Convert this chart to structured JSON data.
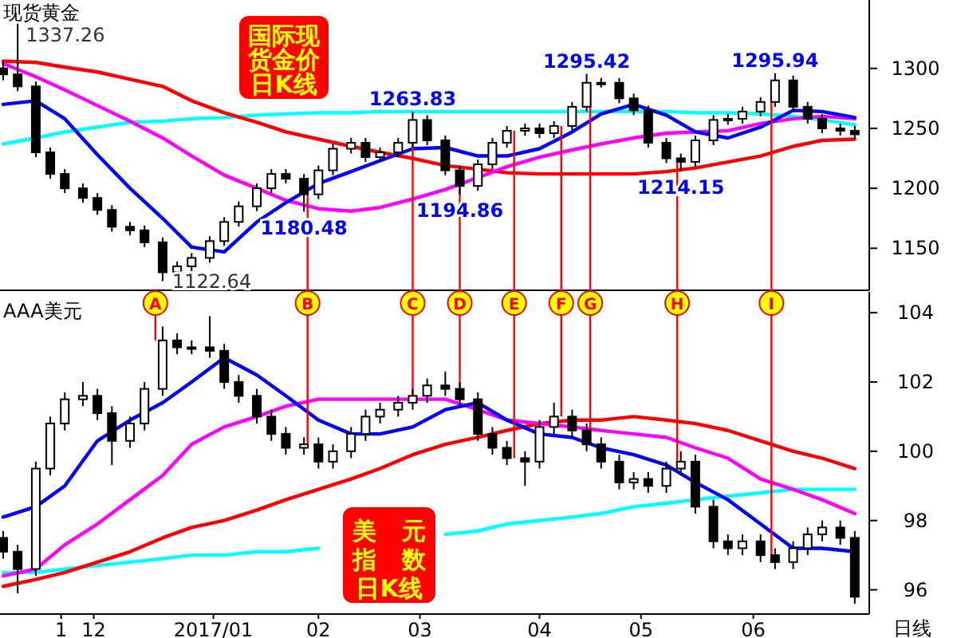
{
  "chart_data": [
    {
      "type": "candlestick",
      "title": "国际现货金价日K线",
      "subtitle": "现货黄金",
      "tick_labels": "y",
      "xlim": [
        "2016-11-06",
        "2017-07-03"
      ],
      "ylim": [
        1115,
        1357
      ],
      "yticks": [
        1150,
        1200,
        1250,
        1300
      ],
      "x": [
        "2016-11-06",
        "2016-11-10",
        "2016-11-15",
        "2016-11-19",
        "2016-11-23",
        "2016-11-28",
        "2016-12-02",
        "2016-12-06",
        "2016-12-11",
        "2016-12-15",
        "2016-12-20",
        "2016-12-24",
        "2016-12-28",
        "2017-01-02",
        "2017-01-06",
        "2017-01-10",
        "2017-01-15",
        "2017-01-19",
        "2017-01-23",
        "2017-01-28",
        "2017-02-01",
        "2017-02-05",
        "2017-02-10",
        "2017-02-14",
        "2017-02-18",
        "2017-02-23",
        "2017-02-27",
        "2017-03-03",
        "2017-03-08",
        "2017-03-12",
        "2017-03-17",
        "2017-03-21",
        "2017-03-25",
        "2017-03-30",
        "2017-04-03",
        "2017-04-07",
        "2017-04-12",
        "2017-04-16",
        "2017-04-20",
        "2017-04-25",
        "2017-04-29",
        "2017-05-03",
        "2017-05-08",
        "2017-05-12",
        "2017-05-16",
        "2017-05-21",
        "2017-05-25",
        "2017-05-29",
        "2017-06-03",
        "2017-06-07",
        "2017-06-12",
        "2017-06-16",
        "2017-06-20",
        "2017-06-25",
        "2017-06-29"
      ],
      "ohlc": [
        [
          1300,
          1306,
          1290,
          1295
        ],
        [
          1295,
          1337.26,
          1281,
          1285
        ],
        [
          1285,
          1289,
          1226,
          1230
        ],
        [
          1230,
          1234,
          1208,
          1212
        ],
        [
          1212,
          1216,
          1196,
          1200
        ],
        [
          1200,
          1204,
          1188,
          1192
        ],
        [
          1192,
          1196,
          1178,
          1182
        ],
        [
          1182,
          1186,
          1164,
          1168
        ],
        [
          1168,
          1172,
          1161,
          1165
        ],
        [
          1165,
          1169,
          1151,
          1155
        ],
        [
          1155,
          1159,
          1122.64,
          1130
        ],
        [
          1130,
          1139,
          1126,
          1135
        ],
        [
          1135,
          1146,
          1131,
          1142
        ],
        [
          1142,
          1160,
          1138,
          1156
        ],
        [
          1156,
          1176,
          1152,
          1172
        ],
        [
          1172,
          1189,
          1168,
          1185
        ],
        [
          1185,
          1204,
          1181,
          1200
        ],
        [
          1200,
          1216,
          1196,
          1212
        ],
        [
          1212,
          1216,
          1204,
          1208
        ],
        [
          1208,
          1212,
          1180.48,
          1195
        ],
        [
          1195,
          1219,
          1191,
          1215
        ],
        [
          1215,
          1237,
          1211,
          1233
        ],
        [
          1233,
          1242,
          1229,
          1238
        ],
        [
          1238,
          1242,
          1222,
          1226
        ],
        [
          1226,
          1234,
          1222,
          1230
        ],
        [
          1230,
          1242,
          1226,
          1238
        ],
        [
          1238,
          1263.83,
          1234,
          1257
        ],
        [
          1257,
          1261,
          1236,
          1240
        ],
        [
          1240,
          1244,
          1211,
          1215
        ],
        [
          1215,
          1219,
          1194.86,
          1202
        ],
        [
          1202,
          1224,
          1198,
          1220
        ],
        [
          1220,
          1242,
          1216,
          1238
        ],
        [
          1238,
          1252,
          1234,
          1248
        ],
        [
          1248,
          1254,
          1244,
          1250
        ],
        [
          1250,
          1254,
          1242,
          1246
        ],
        [
          1246,
          1256,
          1242,
          1252
        ],
        [
          1252,
          1272,
          1248,
          1268
        ],
        [
          1268,
          1295.42,
          1264,
          1288
        ],
        [
          1288,
          1292,
          1284,
          1288
        ],
        [
          1288,
          1292,
          1271,
          1275
        ],
        [
          1275,
          1279,
          1261,
          1265
        ],
        [
          1265,
          1269,
          1234,
          1238
        ],
        [
          1238,
          1242,
          1221,
          1225
        ],
        [
          1225,
          1229,
          1214.15,
          1222
        ],
        [
          1222,
          1244,
          1218,
          1240
        ],
        [
          1240,
          1261,
          1236,
          1257
        ],
        [
          1257,
          1262,
          1253,
          1258
        ],
        [
          1258,
          1268,
          1254,
          1264
        ],
        [
          1264,
          1276,
          1260,
          1272
        ],
        [
          1272,
          1295.94,
          1268,
          1290
        ],
        [
          1290,
          1294,
          1264,
          1268
        ],
        [
          1268,
          1272,
          1254,
          1258
        ],
        [
          1258,
          1262,
          1246,
          1250
        ],
        [
          1250,
          1254,
          1244,
          1248
        ],
        [
          1248,
          1252,
          1241,
          1245
        ]
      ],
      "series": [
        {
          "type": "line",
          "color": "#00ffff",
          "x": [
            "2016-11-06",
            "2016-11-15",
            "2016-11-23",
            "2016-12-02",
            "2016-12-11",
            "2016-12-20",
            "2016-12-28",
            "2017-01-06",
            "2017-01-15",
            "2017-01-23",
            "2017-02-01",
            "2017-02-10",
            "2017-02-18",
            "2017-02-27",
            "2017-03-08",
            "2017-03-17",
            "2017-03-25",
            "2017-04-03",
            "2017-04-12",
            "2017-04-20",
            "2017-04-29",
            "2017-05-08",
            "2017-05-16",
            "2017-05-25",
            "2017-06-03",
            "2017-06-12",
            "2017-06-20",
            "2017-06-29"
          ],
          "values": [
            1237,
            1242,
            1247,
            1251,
            1255,
            1256,
            1258,
            1259,
            1261,
            1262,
            1263,
            1263,
            1264,
            1264,
            1264,
            1264,
            1264,
            1264,
            1264,
            1264,
            1264,
            1264,
            1263,
            1263,
            1262,
            1260,
            1257,
            1253
          ]
        },
        {
          "type": "line",
          "color": "#ff0000",
          "x": [
            "2016-11-06",
            "2016-11-15",
            "2016-11-23",
            "2016-12-02",
            "2016-12-11",
            "2016-12-20",
            "2016-12-28",
            "2017-01-06",
            "2017-01-15",
            "2017-01-23",
            "2017-02-01",
            "2017-02-10",
            "2017-02-18",
            "2017-02-27",
            "2017-03-08",
            "2017-03-17",
            "2017-03-25",
            "2017-04-03",
            "2017-04-12",
            "2017-04-20",
            "2017-04-29",
            "2017-05-08",
            "2017-05-16",
            "2017-05-25",
            "2017-06-03",
            "2017-06-12",
            "2017-06-20",
            "2017-06-29"
          ],
          "values": [
            1306,
            1305,
            1301,
            1297,
            1291,
            1285,
            1273,
            1263,
            1255,
            1247,
            1241,
            1235,
            1230,
            1225,
            1219,
            1216,
            1213,
            1212,
            1212,
            1212,
            1212,
            1214,
            1217,
            1222,
            1227,
            1235,
            1240,
            1241
          ]
        },
        {
          "type": "line",
          "color": "#ff00ff",
          "x": [
            "2016-11-06",
            "2016-11-15",
            "2016-11-23",
            "2016-12-02",
            "2016-12-11",
            "2016-12-20",
            "2016-12-28",
            "2017-01-06",
            "2017-01-15",
            "2017-01-23",
            "2017-02-01",
            "2017-02-10",
            "2017-02-18",
            "2017-02-27",
            "2017-03-08",
            "2017-03-17",
            "2017-03-25",
            "2017-04-03",
            "2017-04-12",
            "2017-04-20",
            "2017-04-29",
            "2017-05-08",
            "2017-05-16",
            "2017-05-25",
            "2017-06-03",
            "2017-06-12",
            "2017-06-20",
            "2017-06-29"
          ],
          "values": [
            1304,
            1293,
            1282,
            1269,
            1256,
            1242,
            1227,
            1211,
            1200,
            1190,
            1183,
            1181,
            1184,
            1191,
            1199,
            1209,
            1218,
            1226,
            1232,
            1237,
            1242,
            1246,
            1247,
            1248,
            1254,
            1258,
            1260,
            1258
          ]
        },
        {
          "type": "line",
          "color": "#0000ff",
          "x": [
            "2016-11-06",
            "2016-11-15",
            "2016-11-23",
            "2016-12-02",
            "2016-12-11",
            "2016-12-20",
            "2016-12-28",
            "2017-01-06",
            "2017-01-15",
            "2017-01-23",
            "2017-02-01",
            "2017-02-10",
            "2017-02-18",
            "2017-02-27",
            "2017-03-08",
            "2017-03-17",
            "2017-03-25",
            "2017-04-03",
            "2017-04-12",
            "2017-04-20",
            "2017-04-29",
            "2017-05-08",
            "2017-05-16",
            "2017-05-25",
            "2017-06-03",
            "2017-06-12",
            "2017-06-20",
            "2017-06-29"
          ],
          "values": [
            1270,
            1273,
            1258,
            1228,
            1200,
            1175,
            1151,
            1147,
            1172,
            1188,
            1204,
            1214,
            1223,
            1233,
            1234,
            1227,
            1227,
            1233,
            1247,
            1262,
            1270,
            1261,
            1247,
            1242,
            1251,
            1265,
            1264,
            1259
          ]
        }
      ],
      "ref_lines": [
        {
          "axis": "x",
          "value": "2017-01-29"
        },
        {
          "axis": "x",
          "value": "2017-02-27"
        },
        {
          "axis": "x",
          "value": "2017-03-12"
        },
        {
          "axis": "x",
          "value": "2017-03-27"
        },
        {
          "axis": "x",
          "value": "2017-04-09"
        },
        {
          "axis": "x",
          "value": "2017-04-17"
        },
        {
          "axis": "x",
          "value": "2017-05-11"
        },
        {
          "axis": "x",
          "value": "2017-06-06"
        }
      ],
      "annotations": [
        {
          "text": "1337.26",
          "x": "2016-11-10",
          "y": 1337.26
        },
        {
          "text": "1122.64",
          "x": "2016-12-20",
          "y": 1122.64
        },
        {
          "text": "1180.48",
          "x": "2017-01-28",
          "y": 1180.48
        },
        {
          "text": "1263.83",
          "x": "2017-02-27",
          "y": 1263.83
        },
        {
          "text": "1194.86",
          "x": "2017-03-12",
          "y": 1194.86
        },
        {
          "text": "1295.42",
          "x": "2017-04-16",
          "y": 1295.42
        },
        {
          "text": "1214.15",
          "x": "2017-05-12",
          "y": 1214.15
        },
        {
          "text": "1295.94",
          "x": "2017-06-07",
          "y": 1295.94
        }
      ]
    },
    {
      "type": "candlestick",
      "title": "美元指数日K线",
      "subtitle": "AAA美元",
      "xlim": [
        "2016-11-06",
        "2017-07-03"
      ],
      "ylim": [
        95.3,
        104.6
      ],
      "yticks": [
        96,
        98,
        100,
        102,
        104
      ],
      "xticks": [
        {
          "value": "2016-11-22",
          "label": "1"
        },
        {
          "value": "2016-12-01",
          "label": "12"
        },
        {
          "value": "2017-01-03",
          "label": "2017/01"
        },
        {
          "value": "2017-02-01",
          "label": "02"
        },
        {
          "value": "2017-03-01",
          "label": "03"
        },
        {
          "value": "2017-04-03",
          "label": "04"
        },
        {
          "value": "2017-05-01",
          "label": "05"
        },
        {
          "value": "2017-06-01",
          "label": "06"
        }
      ],
      "x": [
        "2016-11-06",
        "2016-11-10",
        "2016-11-15",
        "2016-11-19",
        "2016-11-23",
        "2016-11-28",
        "2016-12-02",
        "2016-12-06",
        "2016-12-11",
        "2016-12-15",
        "2016-12-20",
        "2016-12-24",
        "2016-12-28",
        "2017-01-02",
        "2017-01-06",
        "2017-01-10",
        "2017-01-15",
        "2017-01-19",
        "2017-01-23",
        "2017-01-28",
        "2017-02-01",
        "2017-02-05",
        "2017-02-10",
        "2017-02-14",
        "2017-02-18",
        "2017-02-23",
        "2017-02-27",
        "2017-03-03",
        "2017-03-08",
        "2017-03-12",
        "2017-03-17",
        "2017-03-21",
        "2017-03-25",
        "2017-03-30",
        "2017-04-03",
        "2017-04-07",
        "2017-04-12",
        "2017-04-16",
        "2017-04-20",
        "2017-04-25",
        "2017-04-29",
        "2017-05-03",
        "2017-05-08",
        "2017-05-12",
        "2017-05-16",
        "2017-05-21",
        "2017-05-25",
        "2017-05-29",
        "2017-06-03",
        "2017-06-07",
        "2017-06-12",
        "2017-06-16",
        "2017-06-20",
        "2017-06-25",
        "2017-06-29"
      ],
      "ohlc": [
        [
          97.5,
          97.7,
          96.9,
          97.1
        ],
        [
          97.1,
          97.3,
          95.9,
          96.6
        ],
        [
          96.6,
          99.7,
          96.4,
          99.5
        ],
        [
          99.5,
          101.0,
          99.3,
          100.8
        ],
        [
          100.8,
          101.7,
          100.6,
          101.5
        ],
        [
          101.5,
          102.0,
          101.3,
          101.6
        ],
        [
          101.6,
          101.8,
          100.9,
          101.1
        ],
        [
          101.1,
          101.3,
          99.6,
          100.3
        ],
        [
          100.3,
          101.0,
          100.1,
          100.8
        ],
        [
          100.8,
          102.0,
          100.6,
          101.8
        ],
        [
          101.8,
          103.6,
          101.6,
          103.2
        ],
        [
          103.2,
          103.4,
          102.8,
          103.0
        ],
        [
          103.0,
          103.2,
          102.8,
          103.0
        ],
        [
          103.0,
          103.9,
          102.7,
          102.9
        ],
        [
          102.9,
          103.1,
          101.8,
          102.0
        ],
        [
          102.0,
          102.2,
          101.4,
          101.6
        ],
        [
          101.6,
          101.8,
          100.8,
          101.0
        ],
        [
          101.0,
          101.2,
          100.3,
          100.5
        ],
        [
          100.5,
          100.7,
          99.9,
          100.1
        ],
        [
          100.1,
          100.4,
          99.9,
          100.2
        ],
        [
          100.2,
          100.4,
          99.5,
          99.7
        ],
        [
          99.7,
          100.2,
          99.5,
          100.0
        ],
        [
          100.0,
          100.7,
          99.8,
          100.5
        ],
        [
          100.5,
          101.2,
          100.3,
          101.0
        ],
        [
          101.0,
          101.4,
          100.8,
          101.2
        ],
        [
          101.2,
          101.6,
          101.0,
          101.4
        ],
        [
          101.4,
          101.8,
          101.2,
          101.6
        ],
        [
          101.6,
          102.1,
          101.4,
          101.9
        ],
        [
          101.9,
          102.3,
          101.6,
          101.8
        ],
        [
          101.8,
          102.0,
          101.3,
          101.5
        ],
        [
          101.5,
          101.7,
          100.3,
          100.5
        ],
        [
          100.5,
          100.7,
          99.9,
          100.1
        ],
        [
          100.1,
          100.3,
          99.6,
          99.8
        ],
        [
          99.8,
          100.0,
          99.0,
          99.7
        ],
        [
          99.7,
          100.9,
          99.5,
          100.7
        ],
        [
          100.7,
          101.4,
          100.5,
          101.0
        ],
        [
          101.0,
          101.2,
          100.4,
          100.6
        ],
        [
          100.6,
          100.8,
          100.0,
          100.2
        ],
        [
          100.2,
          100.4,
          99.5,
          99.7
        ],
        [
          99.7,
          99.9,
          98.9,
          99.1
        ],
        [
          99.1,
          99.4,
          98.9,
          99.2
        ],
        [
          99.2,
          99.4,
          98.8,
          99.0
        ],
        [
          99.0,
          99.7,
          98.8,
          99.5
        ],
        [
          99.5,
          100.0,
          99.3,
          99.7
        ],
        [
          99.7,
          99.9,
          98.2,
          98.4
        ],
        [
          98.4,
          98.6,
          97.2,
          97.4
        ],
        [
          97.4,
          97.6,
          97.0,
          97.2
        ],
        [
          97.2,
          97.6,
          97.0,
          97.4
        ],
        [
          97.4,
          97.6,
          96.8,
          97.0
        ],
        [
          97.0,
          97.2,
          96.6,
          96.8
        ],
        [
          96.8,
          97.4,
          96.6,
          97.2
        ],
        [
          97.2,
          97.8,
          97.0,
          97.6
        ],
        [
          97.6,
          98.0,
          97.4,
          97.8
        ],
        [
          97.8,
          98.0,
          97.3,
          97.5
        ],
        [
          97.5,
          97.7,
          95.6,
          95.8
        ]
      ],
      "series": [
        {
          "type": "line",
          "color": "#00ffff",
          "x": [
            "2016-11-06",
            "2016-11-15",
            "2016-11-23",
            "2016-12-02",
            "2016-12-11",
            "2016-12-20",
            "2016-12-28",
            "2017-01-06",
            "2017-01-15",
            "2017-01-23",
            "2017-02-01",
            "2017-02-10",
            "2017-02-18",
            "2017-02-27",
            "2017-03-08",
            "2017-03-17",
            "2017-03-25",
            "2017-04-03",
            "2017-04-12",
            "2017-04-20",
            "2017-04-29",
            "2017-05-08",
            "2017-05-16",
            "2017-05-25",
            "2017-06-03",
            "2017-06-12",
            "2017-06-20",
            "2017-06-29"
          ],
          "values": [
            96.5,
            96.5,
            96.6,
            96.7,
            96.8,
            96.9,
            97.0,
            97.0,
            97.1,
            97.1,
            97.2,
            null,
            null,
            null,
            97.6,
            97.7,
            97.9,
            98.0,
            98.1,
            98.2,
            98.4,
            98.5,
            98.6,
            98.7,
            98.8,
            98.9,
            98.9,
            98.9
          ]
        },
        {
          "type": "line",
          "color": "#ff0000",
          "x": [
            "2016-11-06",
            "2016-11-15",
            "2016-11-23",
            "2016-12-02",
            "2016-12-11",
            "2016-12-20",
            "2016-12-28",
            "2017-01-06",
            "2017-01-15",
            "2017-01-23",
            "2017-02-01",
            "2017-02-10",
            "2017-02-18",
            "2017-02-27",
            "2017-03-08",
            "2017-03-17",
            "2017-03-25",
            "2017-04-03",
            "2017-04-12",
            "2017-04-20",
            "2017-04-29",
            "2017-05-08",
            "2017-05-16",
            "2017-05-25",
            "2017-06-03",
            "2017-06-12",
            "2017-06-20",
            "2017-06-29"
          ],
          "values": [
            96.1,
            96.3,
            96.5,
            96.8,
            97.1,
            97.5,
            97.8,
            98.0,
            98.3,
            98.6,
            98.9,
            99.2,
            99.5,
            99.9,
            100.2,
            100.4,
            100.6,
            100.8,
            100.9,
            100.9,
            101.0,
            100.9,
            100.8,
            100.6,
            100.3,
            100.0,
            99.8,
            99.5
          ]
        },
        {
          "type": "line",
          "color": "#ff00ff",
          "x": [
            "2016-11-06",
            "2016-11-15",
            "2016-11-23",
            "2016-12-02",
            "2016-12-11",
            "2016-12-20",
            "2016-12-28",
            "2017-01-06",
            "2017-01-15",
            "2017-01-23",
            "2017-02-01",
            "2017-02-10",
            "2017-02-18",
            "2017-02-27",
            "2017-03-08",
            "2017-03-17",
            "2017-03-25",
            "2017-04-03",
            "2017-04-12",
            "2017-04-20",
            "2017-04-29",
            "2017-05-08",
            "2017-05-16",
            "2017-05-25",
            "2017-06-03",
            "2017-06-12",
            "2017-06-20",
            "2017-06-29"
          ],
          "values": [
            96.4,
            96.6,
            97.3,
            97.9,
            98.6,
            99.3,
            100.2,
            100.7,
            101.0,
            101.3,
            101.5,
            101.5,
            101.5,
            101.5,
            101.5,
            101.2,
            100.9,
            100.8,
            100.7,
            100.6,
            100.5,
            100.4,
            100.1,
            99.8,
            99.2,
            98.9,
            98.6,
            98.2
          ]
        },
        {
          "type": "line",
          "color": "#0000ff",
          "x": [
            "2016-11-06",
            "2016-11-15",
            "2016-11-23",
            "2016-12-02",
            "2016-12-11",
            "2016-12-20",
            "2016-12-28",
            "2017-01-06",
            "2017-01-15",
            "2017-01-23",
            "2017-02-01",
            "2017-02-10",
            "2017-02-18",
            "2017-02-27",
            "2017-03-08",
            "2017-03-17",
            "2017-03-25",
            "2017-04-03",
            "2017-04-12",
            "2017-04-20",
            "2017-04-29",
            "2017-05-08",
            "2017-05-16",
            "2017-05-25",
            "2017-06-03",
            "2017-06-12",
            "2017-06-20",
            "2017-06-29"
          ],
          "values": [
            98.1,
            98.4,
            99.0,
            100.3,
            100.9,
            101.4,
            102.0,
            102.7,
            102.2,
            101.6,
            100.9,
            100.5,
            100.5,
            100.7,
            101.2,
            101.4,
            100.9,
            100.5,
            100.4,
            100.1,
            99.9,
            99.6,
            99.1,
            98.6,
            97.9,
            97.2,
            97.2,
            97.1
          ]
        }
      ],
      "ref_lines": [
        {
          "axis": "x",
          "value": "2016-12-18",
          "label": "A",
          "color": "#ff0000"
        },
        {
          "axis": "x",
          "value": "2017-01-29",
          "label": "B",
          "color": "#ff0000"
        },
        {
          "axis": "x",
          "value": "2017-02-27",
          "label": "C",
          "color": "#ff0000"
        },
        {
          "axis": "x",
          "value": "2017-03-12",
          "label": "D",
          "color": "#ff0000"
        },
        {
          "axis": "x",
          "value": "2017-03-27",
          "label": "E",
          "color": "#ff0000"
        },
        {
          "axis": "x",
          "value": "2017-04-09",
          "label": "F",
          "color": "#ff0000"
        },
        {
          "axis": "x",
          "value": "2017-04-17",
          "label": "G",
          "color": "#ff0000"
        },
        {
          "axis": "x",
          "value": "2017-05-11",
          "label": "H",
          "color": "#ff0000"
        },
        {
          "axis": "x",
          "value": "2017-06-06",
          "label": "I",
          "color": "#ff0000"
        }
      ],
      "annotations": [
        "日线"
      ]
    }
  ]
}
